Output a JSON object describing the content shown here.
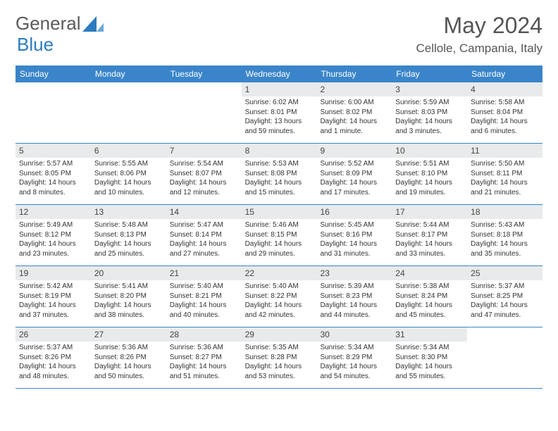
{
  "brand": {
    "part1": "General",
    "part2": "Blue"
  },
  "title": "May 2024",
  "location": "Cellole, Campania, Italy",
  "colors": {
    "header_bg": "#3a85c9",
    "header_text": "#ffffff",
    "daynum_bg": "#e8eaeb",
    "border": "#3a85c9",
    "logo_gray": "#5a5a5a",
    "logo_blue": "#2b7cbf"
  },
  "day_headers": [
    "Sunday",
    "Monday",
    "Tuesday",
    "Wednesday",
    "Thursday",
    "Friday",
    "Saturday"
  ],
  "weeks": [
    [
      {
        "n": "",
        "sr": "",
        "ss": "",
        "dl": ""
      },
      {
        "n": "",
        "sr": "",
        "ss": "",
        "dl": ""
      },
      {
        "n": "",
        "sr": "",
        "ss": "",
        "dl": ""
      },
      {
        "n": "1",
        "sr": "Sunrise: 6:02 AM",
        "ss": "Sunset: 8:01 PM",
        "dl": "Daylight: 13 hours and 59 minutes."
      },
      {
        "n": "2",
        "sr": "Sunrise: 6:00 AM",
        "ss": "Sunset: 8:02 PM",
        "dl": "Daylight: 14 hours and 1 minute."
      },
      {
        "n": "3",
        "sr": "Sunrise: 5:59 AM",
        "ss": "Sunset: 8:03 PM",
        "dl": "Daylight: 14 hours and 3 minutes."
      },
      {
        "n": "4",
        "sr": "Sunrise: 5:58 AM",
        "ss": "Sunset: 8:04 PM",
        "dl": "Daylight: 14 hours and 6 minutes."
      }
    ],
    [
      {
        "n": "5",
        "sr": "Sunrise: 5:57 AM",
        "ss": "Sunset: 8:05 PM",
        "dl": "Daylight: 14 hours and 8 minutes."
      },
      {
        "n": "6",
        "sr": "Sunrise: 5:55 AM",
        "ss": "Sunset: 8:06 PM",
        "dl": "Daylight: 14 hours and 10 minutes."
      },
      {
        "n": "7",
        "sr": "Sunrise: 5:54 AM",
        "ss": "Sunset: 8:07 PM",
        "dl": "Daylight: 14 hours and 12 minutes."
      },
      {
        "n": "8",
        "sr": "Sunrise: 5:53 AM",
        "ss": "Sunset: 8:08 PM",
        "dl": "Daylight: 14 hours and 15 minutes."
      },
      {
        "n": "9",
        "sr": "Sunrise: 5:52 AM",
        "ss": "Sunset: 8:09 PM",
        "dl": "Daylight: 14 hours and 17 minutes."
      },
      {
        "n": "10",
        "sr": "Sunrise: 5:51 AM",
        "ss": "Sunset: 8:10 PM",
        "dl": "Daylight: 14 hours and 19 minutes."
      },
      {
        "n": "11",
        "sr": "Sunrise: 5:50 AM",
        "ss": "Sunset: 8:11 PM",
        "dl": "Daylight: 14 hours and 21 minutes."
      }
    ],
    [
      {
        "n": "12",
        "sr": "Sunrise: 5:49 AM",
        "ss": "Sunset: 8:12 PM",
        "dl": "Daylight: 14 hours and 23 minutes."
      },
      {
        "n": "13",
        "sr": "Sunrise: 5:48 AM",
        "ss": "Sunset: 8:13 PM",
        "dl": "Daylight: 14 hours and 25 minutes."
      },
      {
        "n": "14",
        "sr": "Sunrise: 5:47 AM",
        "ss": "Sunset: 8:14 PM",
        "dl": "Daylight: 14 hours and 27 minutes."
      },
      {
        "n": "15",
        "sr": "Sunrise: 5:46 AM",
        "ss": "Sunset: 8:15 PM",
        "dl": "Daylight: 14 hours and 29 minutes."
      },
      {
        "n": "16",
        "sr": "Sunrise: 5:45 AM",
        "ss": "Sunset: 8:16 PM",
        "dl": "Daylight: 14 hours and 31 minutes."
      },
      {
        "n": "17",
        "sr": "Sunrise: 5:44 AM",
        "ss": "Sunset: 8:17 PM",
        "dl": "Daylight: 14 hours and 33 minutes."
      },
      {
        "n": "18",
        "sr": "Sunrise: 5:43 AM",
        "ss": "Sunset: 8:18 PM",
        "dl": "Daylight: 14 hours and 35 minutes."
      }
    ],
    [
      {
        "n": "19",
        "sr": "Sunrise: 5:42 AM",
        "ss": "Sunset: 8:19 PM",
        "dl": "Daylight: 14 hours and 37 minutes."
      },
      {
        "n": "20",
        "sr": "Sunrise: 5:41 AM",
        "ss": "Sunset: 8:20 PM",
        "dl": "Daylight: 14 hours and 38 minutes."
      },
      {
        "n": "21",
        "sr": "Sunrise: 5:40 AM",
        "ss": "Sunset: 8:21 PM",
        "dl": "Daylight: 14 hours and 40 minutes."
      },
      {
        "n": "22",
        "sr": "Sunrise: 5:40 AM",
        "ss": "Sunset: 8:22 PM",
        "dl": "Daylight: 14 hours and 42 minutes."
      },
      {
        "n": "23",
        "sr": "Sunrise: 5:39 AM",
        "ss": "Sunset: 8:23 PM",
        "dl": "Daylight: 14 hours and 44 minutes."
      },
      {
        "n": "24",
        "sr": "Sunrise: 5:38 AM",
        "ss": "Sunset: 8:24 PM",
        "dl": "Daylight: 14 hours and 45 minutes."
      },
      {
        "n": "25",
        "sr": "Sunrise: 5:37 AM",
        "ss": "Sunset: 8:25 PM",
        "dl": "Daylight: 14 hours and 47 minutes."
      }
    ],
    [
      {
        "n": "26",
        "sr": "Sunrise: 5:37 AM",
        "ss": "Sunset: 8:26 PM",
        "dl": "Daylight: 14 hours and 48 minutes."
      },
      {
        "n": "27",
        "sr": "Sunrise: 5:36 AM",
        "ss": "Sunset: 8:26 PM",
        "dl": "Daylight: 14 hours and 50 minutes."
      },
      {
        "n": "28",
        "sr": "Sunrise: 5:36 AM",
        "ss": "Sunset: 8:27 PM",
        "dl": "Daylight: 14 hours and 51 minutes."
      },
      {
        "n": "29",
        "sr": "Sunrise: 5:35 AM",
        "ss": "Sunset: 8:28 PM",
        "dl": "Daylight: 14 hours and 53 minutes."
      },
      {
        "n": "30",
        "sr": "Sunrise: 5:34 AM",
        "ss": "Sunset: 8:29 PM",
        "dl": "Daylight: 14 hours and 54 minutes."
      },
      {
        "n": "31",
        "sr": "Sunrise: 5:34 AM",
        "ss": "Sunset: 8:30 PM",
        "dl": "Daylight: 14 hours and 55 minutes."
      },
      {
        "n": "",
        "sr": "",
        "ss": "",
        "dl": ""
      }
    ]
  ]
}
